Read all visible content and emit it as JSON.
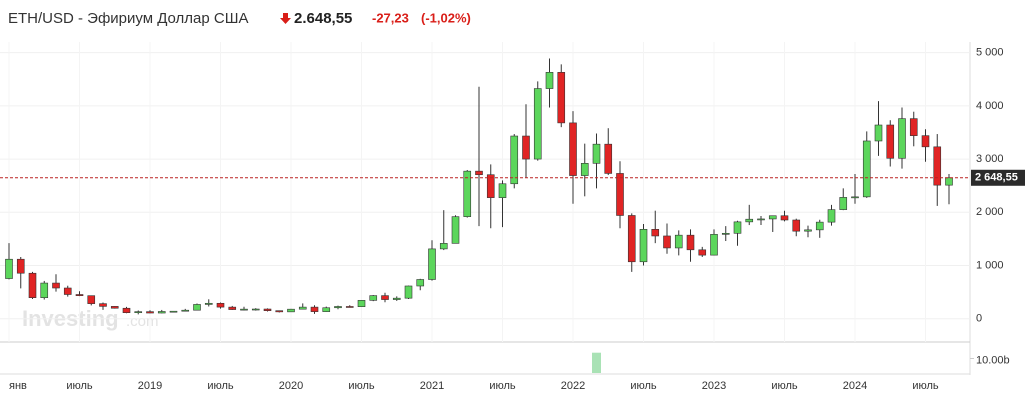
{
  "header": {
    "title": "ETH/USD - Эфириум Доллар США",
    "price": "2.648,55",
    "change": "-27,23",
    "change_pct": "(-1,02%)"
  },
  "chart_data": {
    "type": "candlestick",
    "up_color": "#5cd65c",
    "down_color": "#e02424",
    "grid": true,
    "watermark": [
      "Investing",
      ".com"
    ],
    "categories": [
      "2018-01",
      "2018-02",
      "2018-03",
      "2018-04",
      "2018-05",
      "2018-06",
      "2018-07",
      "2018-08",
      "2018-09",
      "2018-10",
      "2018-11",
      "2018-12",
      "2019-01",
      "2019-02",
      "2019-03",
      "2019-04",
      "2019-05",
      "2019-06",
      "2019-07",
      "2019-08",
      "2019-09",
      "2019-10",
      "2019-11",
      "2019-12",
      "2020-01",
      "2020-02",
      "2020-03",
      "2020-04",
      "2020-05",
      "2020-06",
      "2020-07",
      "2020-08",
      "2020-09",
      "2020-10",
      "2020-11",
      "2020-12",
      "2021-01",
      "2021-02",
      "2021-03",
      "2021-04",
      "2021-05",
      "2021-06",
      "2021-07",
      "2021-08",
      "2021-09",
      "2021-10",
      "2021-11",
      "2021-12",
      "2022-01",
      "2022-02",
      "2022-03",
      "2022-04",
      "2022-05",
      "2022-06",
      "2022-07",
      "2022-08",
      "2022-09",
      "2022-10",
      "2022-11",
      "2022-12",
      "2023-01",
      "2023-02",
      "2023-03",
      "2023-04",
      "2023-05",
      "2023-06",
      "2023-07",
      "2023-08",
      "2023-09",
      "2023-10",
      "2023-11",
      "2023-12",
      "2024-01",
      "2024-02",
      "2024-03",
      "2024-04",
      "2024-05",
      "2024-06",
      "2024-07",
      "2024-08",
      "2024-09"
    ],
    "ohlc": [
      [
        755,
        1420,
        740,
        1118
      ],
      [
        1118,
        1160,
        570,
        855
      ],
      [
        855,
        880,
        370,
        395
      ],
      [
        395,
        710,
        360,
        670
      ],
      [
        670,
        835,
        510,
        577
      ],
      [
        577,
        620,
        415,
        455
      ],
      [
        455,
        515,
        425,
        433
      ],
      [
        433,
        435,
        250,
        283
      ],
      [
        283,
        305,
        167,
        232
      ],
      [
        232,
        235,
        190,
        197
      ],
      [
        197,
        222,
        102,
        113
      ],
      [
        113,
        155,
        82,
        133
      ],
      [
        133,
        160,
        102,
        107
      ],
      [
        107,
        165,
        102,
        136
      ],
      [
        136,
        145,
        125,
        141
      ],
      [
        141,
        185,
        138,
        160
      ],
      [
        160,
        285,
        158,
        268
      ],
      [
        268,
        365,
        230,
        290
      ],
      [
        290,
        305,
        190,
        218
      ],
      [
        218,
        240,
        165,
        172
      ],
      [
        172,
        225,
        155,
        180
      ],
      [
        180,
        198,
        153,
        182
      ],
      [
        182,
        195,
        135,
        151
      ],
      [
        151,
        153,
        117,
        129
      ],
      [
        129,
        185,
        127,
        179
      ],
      [
        179,
        288,
        175,
        218
      ],
      [
        218,
        253,
        90,
        133
      ],
      [
        133,
        228,
        128,
        206
      ],
      [
        206,
        245,
        178,
        230
      ],
      [
        230,
        254,
        216,
        226
      ],
      [
        226,
        348,
        222,
        345
      ],
      [
        345,
        445,
        330,
        434
      ],
      [
        434,
        488,
        310,
        360
      ],
      [
        360,
        420,
        335,
        386
      ],
      [
        386,
        622,
        370,
        615
      ],
      [
        615,
        750,
        535,
        737
      ],
      [
        737,
        1475,
        715,
        1312
      ],
      [
        1312,
        2040,
        1290,
        1416
      ],
      [
        1416,
        1945,
        1435,
        1918
      ],
      [
        1918,
        2795,
        1900,
        2773
      ],
      [
        2773,
        4360,
        1740,
        2706
      ],
      [
        2706,
        2900,
        1700,
        2275
      ],
      [
        2275,
        2600,
        1720,
        2536
      ],
      [
        2536,
        3470,
        2450,
        3433
      ],
      [
        3433,
        4030,
        2650,
        3000
      ],
      [
        3000,
        4460,
        2970,
        4325
      ],
      [
        4325,
        4890,
        3970,
        4630
      ],
      [
        4630,
        4780,
        3600,
        3680
      ],
      [
        3680,
        3900,
        2160,
        2690
      ],
      [
        2690,
        3290,
        2300,
        2920
      ],
      [
        2920,
        3480,
        2450,
        3280
      ],
      [
        3280,
        3580,
        2700,
        2730
      ],
      [
        2730,
        2960,
        1700,
        1940
      ],
      [
        1940,
        1980,
        880,
        1070
      ],
      [
        1070,
        1780,
        1000,
        1680
      ],
      [
        1680,
        2030,
        1420,
        1555
      ],
      [
        1555,
        1790,
        1220,
        1330
      ],
      [
        1330,
        1660,
        1190,
        1570
      ],
      [
        1570,
        1680,
        1070,
        1295
      ],
      [
        1295,
        1350,
        1160,
        1195
      ],
      [
        1195,
        1680,
        1190,
        1585
      ],
      [
        1585,
        1740,
        1460,
        1605
      ],
      [
        1605,
        1840,
        1370,
        1820
      ],
      [
        1820,
        2140,
        1760,
        1870
      ],
      [
        1870,
        1930,
        1760,
        1875
      ],
      [
        1875,
        1940,
        1630,
        1935
      ],
      [
        1935,
        2030,
        1830,
        1855
      ],
      [
        1855,
        1880,
        1550,
        1645
      ],
      [
        1645,
        1750,
        1530,
        1670
      ],
      [
        1670,
        1860,
        1520,
        1815
      ],
      [
        1815,
        2140,
        1750,
        2050
      ],
      [
        2050,
        2450,
        2040,
        2280
      ],
      [
        2280,
        2720,
        2160,
        2290
      ],
      [
        2290,
        3520,
        2270,
        3340
      ],
      [
        3340,
        4090,
        3060,
        3640
      ],
      [
        3640,
        3730,
        2860,
        3015
      ],
      [
        3015,
        3970,
        2820,
        3760
      ],
      [
        3760,
        3890,
        3240,
        3440
      ],
      [
        3440,
        3560,
        2950,
        3230
      ],
      [
        3230,
        3470,
        2120,
        2510
      ],
      [
        2510,
        2720,
        2150,
        2648.55
      ]
    ],
    "ylim": [
      -400,
      5200
    ],
    "yticks": [
      0,
      {
        "value": 1000,
        "label": "1 000"
      },
      {
        "value": 2000,
        "label": "2 000"
      },
      {
        "value": 3000,
        "label": "3 000"
      },
      {
        "value": 4000,
        "label": "4 000"
      },
      {
        "value": 5000,
        "label": "5 000"
      }
    ],
    "price_line": {
      "value": 2648.55,
      "label": "2 648,55"
    },
    "xticks": [
      {
        "value": "2018-01",
        "label": "янв"
      },
      {
        "value": "2018-07",
        "label": "июль"
      },
      {
        "value": "2019-01",
        "label": "2019"
      },
      {
        "value": "2019-07",
        "label": "июль"
      },
      {
        "value": "2020-01",
        "label": "2020"
      },
      {
        "value": "2020-07",
        "label": "июль"
      },
      {
        "value": "2021-01",
        "label": "2021"
      },
      {
        "value": "2021-07",
        "label": "июль"
      },
      {
        "value": "2022-01",
        "label": "2022"
      },
      {
        "value": "2022-07",
        "label": "июль"
      },
      {
        "value": "2023-01",
        "label": "2023"
      },
      {
        "value": "2023-07",
        "label": "июль"
      },
      {
        "value": "2024-01",
        "label": "2024"
      },
      {
        "value": "2024-07",
        "label": "июль"
      }
    ],
    "volume": {
      "color": "#a9e2b5",
      "bars": [
        {
          "x": "2022-03",
          "value": 14000000000
        }
      ],
      "ylim": [
        0,
        20000000000
      ],
      "yticks": [
        {
          "value": 10000000000,
          "label": "10.00b"
        }
      ]
    }
  }
}
